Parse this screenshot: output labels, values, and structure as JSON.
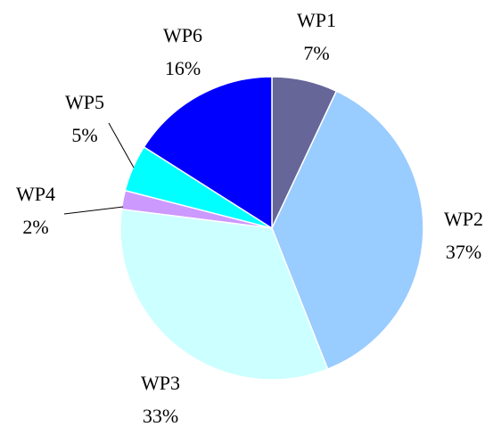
{
  "chart_data": {
    "type": "pie",
    "categories": [
      "WP1",
      "WP2",
      "WP3",
      "WP4",
      "WP5",
      "WP6"
    ],
    "values": [
      7,
      37,
      33,
      2,
      5,
      16
    ],
    "value_labels": [
      "7%",
      "37%",
      "33%",
      "2%",
      "5%",
      "16%"
    ],
    "colors": [
      "#666699",
      "#99ccff",
      "#ccffff",
      "#cc99ff",
      "#00ffff",
      "#0000ff"
    ]
  }
}
